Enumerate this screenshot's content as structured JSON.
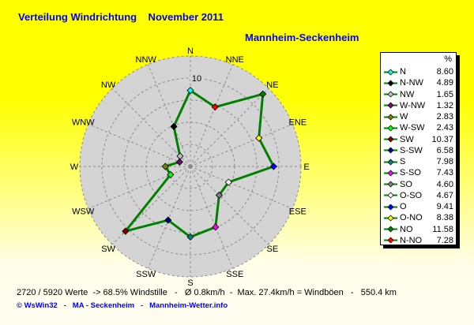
{
  "header": {
    "title": "Verteilung Windrichtung    November 2011",
    "station": "Mannheim-Seckenheim"
  },
  "chart_data": {
    "type": "radar",
    "title": "Verteilung Windrichtung November 2011",
    "subtitle": "Mannheim-Seckenheim",
    "unit": "%",
    "axis_max": 12.5,
    "ring_step": 2.5,
    "ring_label": "10",
    "grid": "dashed",
    "line_color": "#008000",
    "disk_color": "#d4d4d4",
    "grid_color": "#8c8c8c",
    "points": [
      {
        "dir_en": "N",
        "dir_de": "N",
        "value": "8.60",
        "color": "#00ffff"
      },
      {
        "dir_en": "NNE",
        "dir_de": "N-NO",
        "value": "7.28",
        "color": "#ff0000"
      },
      {
        "dir_en": "NE",
        "dir_de": "NO",
        "value": "11.58",
        "color": "#008000"
      },
      {
        "dir_en": "ENE",
        "dir_de": "O-NO",
        "value": "8.38",
        "color": "#ffff00"
      },
      {
        "dir_en": "E",
        "dir_de": "O",
        "value": "9.41",
        "color": "#0000ff"
      },
      {
        "dir_en": "ESE",
        "dir_de": "O-SO",
        "value": "4.67",
        "color": "#ffffff"
      },
      {
        "dir_en": "SE",
        "dir_de": "SO",
        "value": "4.60",
        "color": "#808080"
      },
      {
        "dir_en": "SSE",
        "dir_de": "S-SO",
        "value": "7.43",
        "color": "#ff00ff"
      },
      {
        "dir_en": "S",
        "dir_de": "S",
        "value": "7.98",
        "color": "#008080"
      },
      {
        "dir_en": "SSW",
        "dir_de": "S-SW",
        "value": "6.58",
        "color": "#000080"
      },
      {
        "dir_en": "SW",
        "dir_de": "SW",
        "value": "10.37",
        "color": "#800000"
      },
      {
        "dir_en": "WSW",
        "dir_de": "W-SW",
        "value": "2.43",
        "color": "#00ff00"
      },
      {
        "dir_en": "W",
        "dir_de": "W",
        "value": "2.83",
        "color": "#808000"
      },
      {
        "dir_en": "WNW",
        "dir_de": "W-NW",
        "value": "1.32",
        "color": "#800080"
      },
      {
        "dir_en": "NW",
        "dir_de": "NW",
        "value": "1.65",
        "color": "#c0c0c0"
      },
      {
        "dir_en": "NNW",
        "dir_de": "N-NW",
        "value": "4.89",
        "color": "#000000"
      }
    ],
    "legend_order": [
      "N",
      "N-NW",
      "NW",
      "W-NW",
      "W",
      "W-SW",
      "SW",
      "S-SW",
      "S",
      "S-SO",
      "SO",
      "O-SO",
      "O",
      "O-NO",
      "NO",
      "N-NO"
    ]
  },
  "legend": {
    "header": "%"
  },
  "footer": {
    "stats": "2720 / 5920 Werte  -> 68.5% Windstille   -   Ø 0.8km/h  -  Max. 27.4km/h = Windböen   -   550.4 km",
    "copyright": "© WsWin32   -   MA - Seckenheim   -   Mannheim-Wetter.info"
  }
}
